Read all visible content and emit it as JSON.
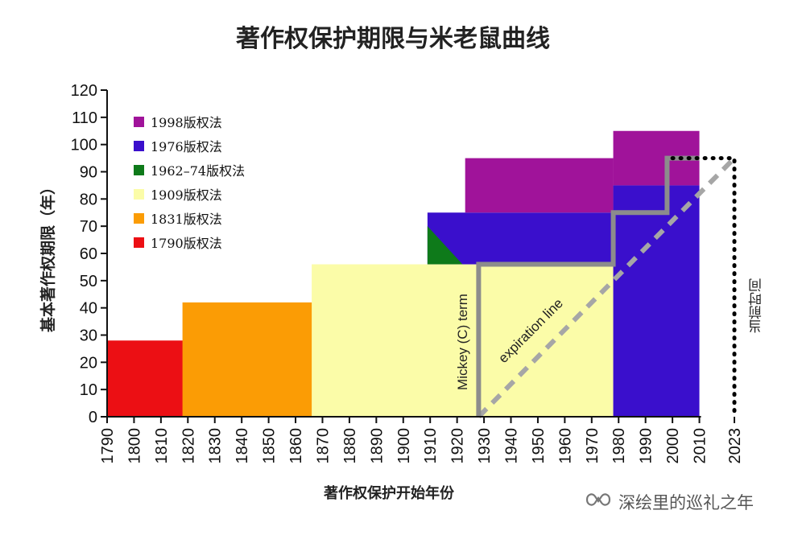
{
  "chart_data": {
    "type": "area",
    "title": "著作权保护期限与米老鼠曲线",
    "xlabel": "著作权保护开始年份",
    "ylabel": "基本著作权期限（年）",
    "ylim": [
      0,
      120
    ],
    "xlim": [
      1790,
      2023
    ],
    "y_ticks": [
      0,
      10,
      20,
      30,
      40,
      50,
      60,
      70,
      80,
      90,
      100,
      110,
      120
    ],
    "x_ticks": [
      1790,
      1800,
      1810,
      1820,
      1830,
      1840,
      1850,
      1860,
      1870,
      1880,
      1890,
      1900,
      1910,
      1920,
      1930,
      1940,
      1950,
      1960,
      1970,
      1980,
      1990,
      2000,
      2010,
      2023
    ],
    "grid": false,
    "legend_position": "top-left",
    "series": [
      {
        "name": "1998版权法",
        "color": "#a0139a"
      },
      {
        "name": "1976版权法",
        "color": "#3a0fcc"
      },
      {
        "name": "1962–74版权法",
        "color": "#0e7a1a"
      },
      {
        "name": "1909版权法",
        "color": "#fbfca8"
      },
      {
        "name": "1831版权法",
        "color": "#fb9c05"
      },
      {
        "name": "1790版权法",
        "color": "#ec0f14"
      }
    ],
    "regions": [
      {
        "series": "1790版权法",
        "x0": 1790,
        "x1": 1831,
        "y0": 0,
        "y1": 28
      },
      {
        "series": "1831版权法",
        "x0": 1818,
        "x1": 1909,
        "y0": 0,
        "y1": 42
      },
      {
        "series": "1909版权法",
        "x0": 1866,
        "x1": 1978,
        "y0": 0,
        "y1": 56
      },
      {
        "series": "1962–74版权法",
        "x0": 1909,
        "x1": 1922,
        "y0": 56,
        "y1": 70,
        "shape": "triangle"
      },
      {
        "series": "1976版权法",
        "x0": 1909,
        "x1": 1978,
        "y0": 56,
        "y1": 75
      },
      {
        "series": "1976版权法",
        "x0": 1978,
        "x1": 2010,
        "y0": 0,
        "y1": 85
      },
      {
        "series": "1998版权法",
        "x0": 1923,
        "x1": 1978,
        "y0": 75,
        "y1": 95
      },
      {
        "series": "1998版权法",
        "x0": 1978,
        "x1": 2010,
        "y0": 85,
        "y1": 105
      }
    ],
    "mickey_term": {
      "label": "Mickey (C) term",
      "color": "#8c8c8c",
      "points": [
        [
          1928,
          0
        ],
        [
          1928,
          56
        ],
        [
          1978,
          56
        ],
        [
          1978,
          75
        ],
        [
          1998,
          75
        ],
        [
          1998,
          95
        ],
        [
          2010,
          95
        ]
      ]
    },
    "expiration_line": {
      "label": "expiration line",
      "color": "#a6a6a6",
      "points": [
        [
          1928,
          0
        ],
        [
          2023,
          95
        ]
      ]
    },
    "dotted_line": {
      "color": "#000000",
      "points": [
        [
          2000,
          95
        ],
        [
          2023,
          95
        ],
        [
          2023,
          0
        ]
      ]
    },
    "right_annotation": "当前时间"
  },
  "watermark": {
    "text": "深绘里的巡礼之年",
    "icon": "wechat-channel-icon"
  }
}
